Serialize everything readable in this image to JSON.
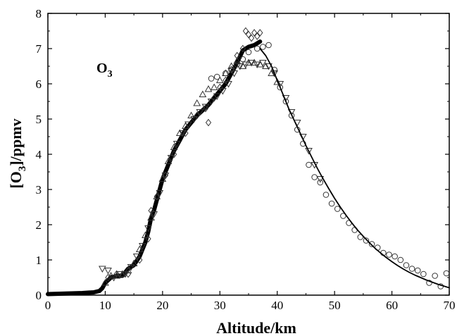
{
  "chart_data": {
    "type": "scatter",
    "title": "",
    "annotation": {
      "main": "O",
      "sub": "3"
    },
    "xlabel": "Altitude/km",
    "ylabel": {
      "open": "[O",
      "sub": "3",
      "close": "]/ppmv"
    },
    "xlim": [
      0,
      70
    ],
    "ylim": [
      0,
      8
    ],
    "xticks": [
      0,
      10,
      20,
      30,
      40,
      50,
      60,
      70
    ],
    "yticks": [
      0,
      1,
      2,
      3,
      4,
      5,
      6,
      7,
      8
    ],
    "grid": false,
    "legend": "none",
    "colors": {
      "axis": "#000000",
      "marker": "#333333",
      "dense": "#000000",
      "line": "#000000"
    },
    "series": [
      {
        "marker": "thick-line",
        "x": [
          0,
          2,
          4,
          6,
          8,
          9,
          9.5,
          10,
          11,
          12,
          13,
          14,
          15,
          16,
          17,
          17.5,
          18,
          18.5,
          19,
          20,
          21,
          22,
          23,
          24,
          25,
          26,
          27,
          28,
          29,
          30,
          31,
          32,
          33,
          34,
          35,
          36,
          37
        ],
        "y": [
          0.03,
          0.04,
          0.05,
          0.06,
          0.08,
          0.12,
          0.2,
          0.35,
          0.5,
          0.55,
          0.55,
          0.75,
          0.85,
          1.1,
          1.5,
          1.8,
          2.2,
          2.4,
          2.7,
          3.3,
          3.7,
          4.1,
          4.4,
          4.7,
          4.9,
          5.1,
          5.25,
          5.4,
          5.6,
          5.8,
          6.0,
          6.3,
          6.6,
          6.95,
          7.05,
          7.1,
          7.2
        ]
      },
      {
        "marker": "circle",
        "x": [
          28.5,
          29.5,
          31,
          32,
          33,
          34,
          35,
          36.5,
          37.5,
          38.5,
          39.5,
          40.5,
          41.5,
          42.5,
          43.5,
          44.5,
          45.5,
          46.5,
          47.5,
          48.5,
          49.5,
          50.5,
          51.5,
          52.5,
          53.5,
          54.5,
          55.5,
          56.5,
          57.5,
          58.5,
          59.5,
          60.5,
          61.5,
          62.5,
          63.5,
          64.5,
          65.5,
          66.5,
          67.5,
          68.5,
          69.5
        ],
        "y": [
          6.15,
          6.2,
          6.3,
          6.4,
          6.55,
          6.7,
          6.9,
          7.0,
          7.05,
          7.1,
          6.4,
          5.9,
          5.5,
          5.1,
          4.7,
          4.3,
          3.7,
          3.35,
          3.2,
          2.85,
          2.6,
          2.45,
          2.25,
          2.05,
          1.85,
          1.65,
          1.55,
          1.45,
          1.35,
          1.2,
          1.15,
          1.1,
          1.0,
          0.85,
          0.75,
          0.7,
          0.6,
          0.35,
          0.55,
          0.25,
          0.62
        ]
      },
      {
        "marker": "triangle-up",
        "x": [
          10,
          11,
          12,
          13,
          14,
          15,
          16,
          17,
          18,
          19,
          20,
          21,
          22,
          23,
          24,
          25,
          26,
          27,
          28,
          29,
          30,
          31,
          32,
          33,
          34,
          35,
          36,
          37,
          38,
          39,
          40
        ],
        "y": [
          0.35,
          0.55,
          0.55,
          0.6,
          0.7,
          0.9,
          1.3,
          1.7,
          2.2,
          2.8,
          3.3,
          3.8,
          4.2,
          4.6,
          4.8,
          5.1,
          5.45,
          5.7,
          5.85,
          5.9,
          6.1,
          6.3,
          6.5,
          6.65,
          6.5,
          6.6,
          6.6,
          6.55,
          6.5,
          6.3,
          6.05
        ]
      },
      {
        "marker": "triangle-down",
        "x": [
          9.5,
          10.5,
          11.5,
          12.5,
          13.5,
          14.5,
          15.5,
          16.5,
          17.5,
          18.5,
          19.5,
          20.5,
          21.5,
          22.5,
          23.5,
          24.5,
          25.5,
          26.5,
          27.5,
          28.5,
          29.5,
          30.5,
          31.5,
          32.5,
          33.5,
          34.5,
          35.5,
          36.5,
          37.5,
          38.5,
          39.5,
          40.5,
          41.5,
          42.5,
          43.5,
          44.5,
          45.5,
          46.5,
          47.5
        ],
        "y": [
          0.75,
          0.7,
          0.5,
          0.6,
          0.6,
          0.8,
          1.1,
          1.4,
          1.9,
          2.3,
          2.9,
          3.4,
          3.9,
          4.3,
          4.6,
          4.85,
          5.0,
          5.2,
          5.35,
          5.5,
          5.65,
          5.8,
          6.0,
          6.3,
          6.5,
          6.55,
          6.6,
          6.55,
          6.6,
          6.5,
          6.3,
          6.0,
          5.6,
          5.2,
          4.9,
          4.5,
          4.1,
          3.7,
          3.3
        ]
      },
      {
        "marker": "diamond",
        "x": [
          10.5,
          12,
          14,
          16,
          17.5,
          18,
          19,
          20.5,
          22,
          24,
          26,
          27.5,
          28,
          29,
          30,
          31,
          32,
          33,
          34,
          34.5,
          35,
          35.5,
          36,
          36.5,
          37
        ],
        "y": [
          0.5,
          0.6,
          0.6,
          1.0,
          1.6,
          2.4,
          2.8,
          3.4,
          4.0,
          4.6,
          5.1,
          5.3,
          4.9,
          5.6,
          5.9,
          6.1,
          6.4,
          6.8,
          7.0,
          7.5,
          7.4,
          7.3,
          7.45,
          7.35,
          7.45
        ]
      },
      {
        "marker": "fit-line",
        "x": [
          37,
          38,
          39,
          40,
          41,
          42,
          43,
          44,
          45,
          46,
          47,
          48,
          49,
          50,
          51,
          52,
          53,
          54,
          55,
          56,
          57,
          58,
          59,
          60,
          61,
          62,
          63,
          64,
          65,
          66,
          67,
          68,
          69,
          70
        ],
        "y": [
          7.0,
          6.8,
          6.5,
          6.1,
          5.7,
          5.3,
          4.95,
          4.6,
          4.25,
          3.92,
          3.6,
          3.3,
          3.02,
          2.75,
          2.5,
          2.27,
          2.05,
          1.85,
          1.67,
          1.5,
          1.34,
          1.2,
          1.07,
          0.95,
          0.84,
          0.74,
          0.65,
          0.57,
          0.5,
          0.43,
          0.37,
          0.31,
          0.26,
          0.21
        ]
      }
    ]
  }
}
